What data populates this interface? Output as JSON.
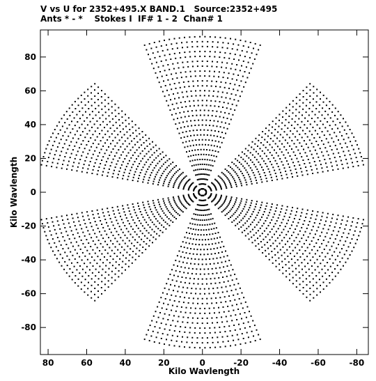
{
  "header": {
    "line1": "V vs U for 2352+495.X BAND.1   Source:2352+495",
    "line2": "Ants * - *    Stokes I  IF# 1 - 2  Chan# 1"
  },
  "chart_data": {
    "type": "scatter",
    "title": "V vs U for 2352+495.X BAND.1   Source:2352+495",
    "subtitle": "Ants * - *    Stokes I  IF# 1 - 2  Chan# 1",
    "xlabel": "Kilo Wavlength",
    "ylabel": "Kilo Wavlength",
    "xlim": [
      84,
      -86
    ],
    "ylim": [
      -96,
      96
    ],
    "x_reversed": true,
    "xticks": [
      80,
      60,
      40,
      20,
      0,
      -20,
      -40,
      -60,
      -80
    ],
    "yticks": [
      80,
      60,
      40,
      20,
      0,
      -20,
      -40,
      -60,
      -80
    ],
    "grid": false,
    "legend": "none",
    "marker_color": "#000000",
    "uv_coverage": {
      "description_values": "Earth-rotation synthesis tracks; symmetric point pairs (u,v) and (-u,-v)",
      "arm_angles_deg": [
        90,
        30,
        -30,
        150,
        210,
        270
      ],
      "arm_max_radius_kilo_wavelength": [
        92,
        85,
        85,
        85,
        85,
        92
      ],
      "track_count": 32,
      "track_min_radius_kilo_wavelength": 2,
      "track_max_radius_kilo_wavelength": 86,
      "hour_angle_span_deg": 38
    }
  }
}
